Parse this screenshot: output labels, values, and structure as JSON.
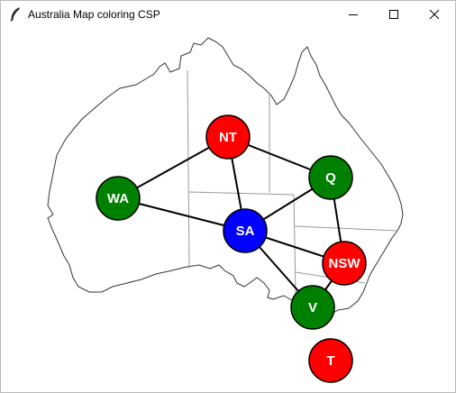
{
  "window": {
    "title": "Australia Map coloring CSP",
    "icon": "feather-icon",
    "controls": [
      "minimize-icon",
      "maximize-icon",
      "close-icon"
    ]
  },
  "colors": {
    "red": "#ff0000",
    "green": "#008000",
    "blue": "#0000ff",
    "edge": "#000000",
    "map_outline": "#333333",
    "border": "#999999"
  },
  "regions": [
    {
      "id": "NT",
      "label": "NT",
      "color": "red"
    },
    {
      "id": "Q",
      "label": "Q",
      "color": "green"
    },
    {
      "id": "WA",
      "label": "WA",
      "color": "green"
    },
    {
      "id": "SA",
      "label": "SA",
      "color": "blue"
    },
    {
      "id": "NSW",
      "label": "NSW",
      "color": "red"
    },
    {
      "id": "V",
      "label": "V",
      "color": "green"
    },
    {
      "id": "T",
      "label": "T",
      "color": "red"
    }
  ],
  "edges": [
    [
      "WA",
      "NT"
    ],
    [
      "WA",
      "SA"
    ],
    [
      "NT",
      "SA"
    ],
    [
      "NT",
      "Q"
    ],
    [
      "SA",
      "Q"
    ],
    [
      "SA",
      "NSW"
    ],
    [
      "SA",
      "V"
    ],
    [
      "Q",
      "NSW"
    ],
    [
      "NSW",
      "V"
    ]
  ]
}
